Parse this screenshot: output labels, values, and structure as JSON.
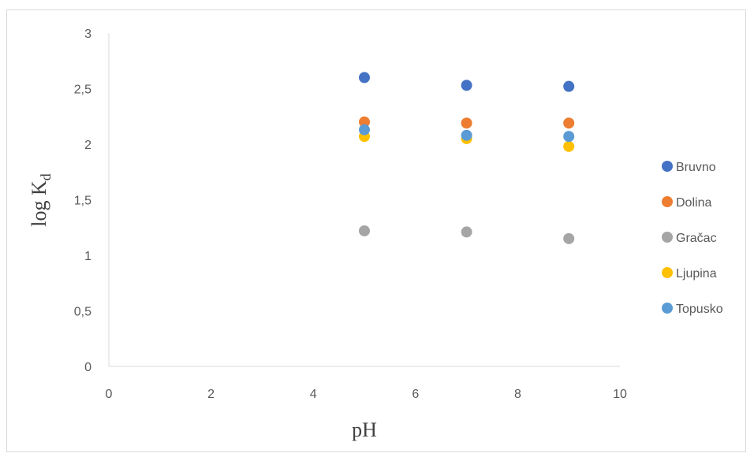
{
  "chart_data": {
    "type": "scatter",
    "xlabel": "pH",
    "ylabel_main": "log K",
    "ylabel_sub": "d",
    "xlim": [
      0,
      10
    ],
    "ylim": [
      0,
      3
    ],
    "x_ticks": [
      "0",
      "2",
      "4",
      "6",
      "8",
      "10"
    ],
    "y_ticks": [
      "0",
      "0,5",
      "1",
      "1,5",
      "2",
      "2,5",
      "3"
    ],
    "grid": false,
    "legend_position": "right",
    "series": [
      {
        "name": "Bruvno",
        "color": "#4472C4",
        "x": [
          5,
          7,
          9
        ],
        "y": [
          2.6,
          2.53,
          2.52
        ]
      },
      {
        "name": "Dolina",
        "color": "#ED7D31",
        "x": [
          5,
          7,
          9
        ],
        "y": [
          2.2,
          2.19,
          2.19
        ]
      },
      {
        "name": "Gračac",
        "color": "#A5A5A5",
        "x": [
          5,
          7,
          9
        ],
        "y": [
          1.22,
          1.21,
          1.15
        ]
      },
      {
        "name": "Ljupina",
        "color": "#FFC000",
        "x": [
          5,
          7,
          9
        ],
        "y": [
          2.07,
          2.05,
          1.98
        ]
      },
      {
        "name": "Topusko",
        "color": "#5B9BD5",
        "x": [
          5,
          7,
          9
        ],
        "y": [
          2.13,
          2.08,
          2.07
        ]
      }
    ]
  }
}
